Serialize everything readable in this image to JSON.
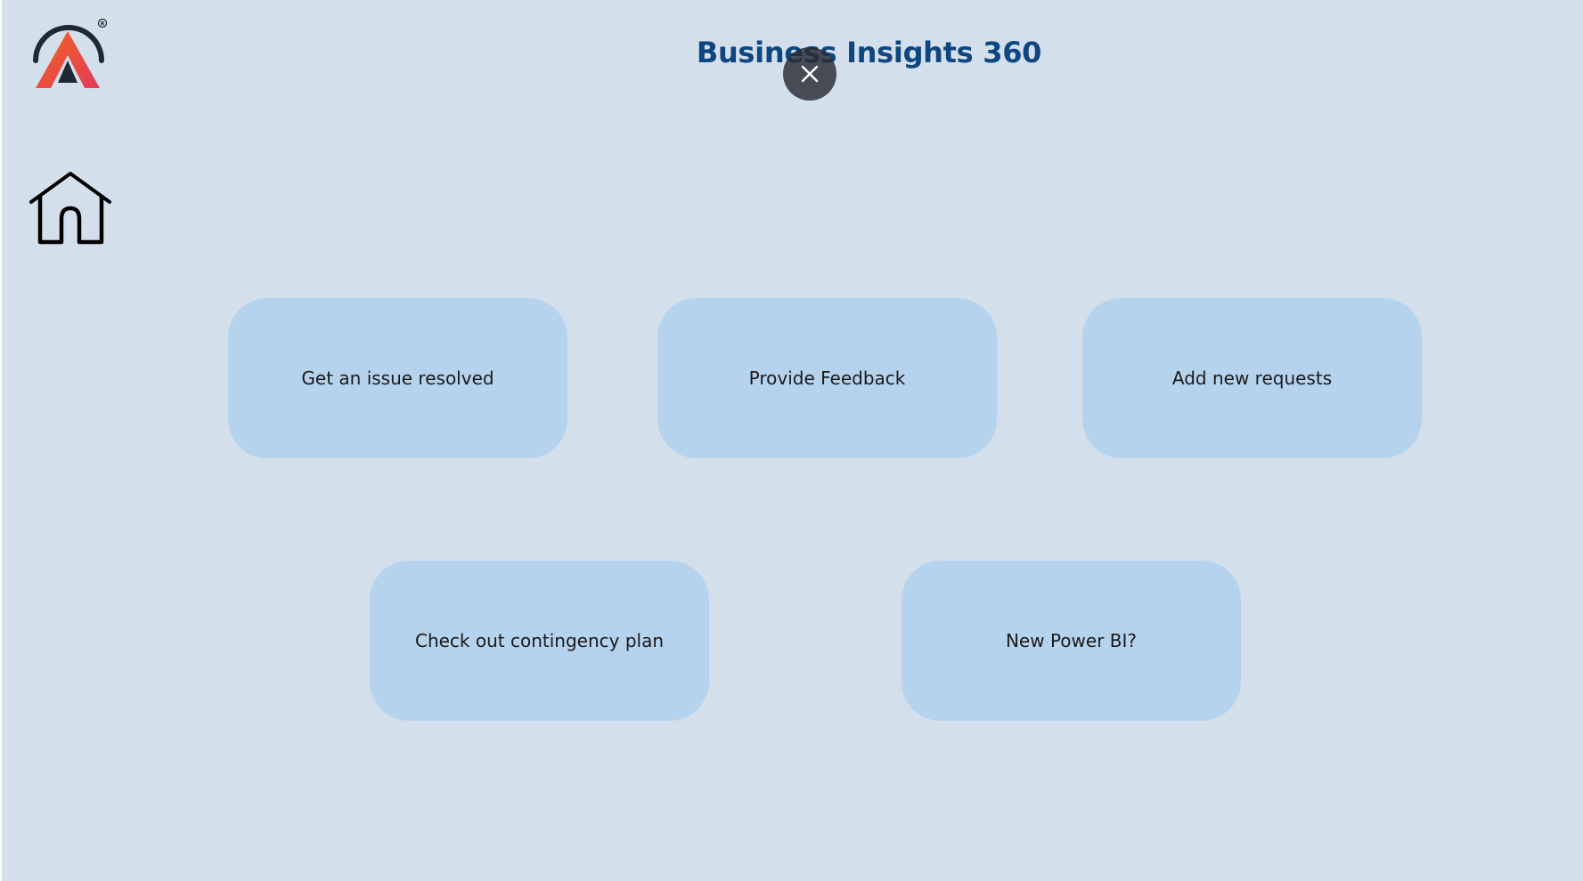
{
  "header": {
    "title": "Business Insights 360"
  },
  "brand": {
    "logo_icon": "brand-a-logo",
    "logo_mark": "A",
    "registered": "®",
    "colors": {
      "ring": "#1f2933",
      "gradient_start": "#f26522",
      "gradient_end": "#e23a5a"
    }
  },
  "nav": {
    "home_icon": "home-icon"
  },
  "overlay": {
    "close_icon": "close-icon"
  },
  "tiles": [
    {
      "label": "Get an issue resolved"
    },
    {
      "label": "Provide Feedback"
    },
    {
      "label": "Add new requests"
    },
    {
      "label": "Check out contingency plan"
    },
    {
      "label": "New Power BI?"
    }
  ],
  "colors": {
    "background": "#d3dfeb",
    "tile": "#b6d3ee",
    "title": "#0d4680"
  }
}
